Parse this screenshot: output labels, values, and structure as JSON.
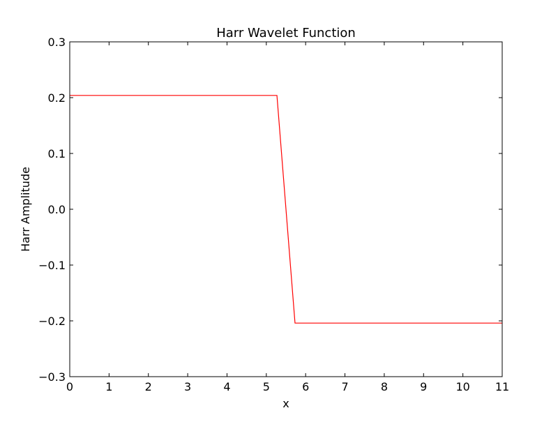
{
  "chart_data": {
    "type": "line",
    "title": "Harr Wavelet Function",
    "xlabel": "x",
    "ylabel": "Harr Amplitude",
    "xlim": [
      0,
      11
    ],
    "ylim": [
      -0.3,
      0.3
    ],
    "grid": false,
    "x_ticks": [
      0,
      1,
      2,
      3,
      4,
      5,
      6,
      7,
      8,
      9,
      10,
      11
    ],
    "x_tick_labels": [
      "0",
      "1",
      "2",
      "3",
      "4",
      "5",
      "6",
      "7",
      "8",
      "9",
      "10",
      "11"
    ],
    "y_ticks": [
      -0.3,
      -0.2,
      -0.1,
      0.0,
      0.1,
      0.2,
      0.3
    ],
    "y_tick_labels": [
      "−0.3",
      "−0.2",
      "−0.1",
      "0.0",
      "0.1",
      "0.2",
      "0.3"
    ],
    "series": [
      {
        "color": "#ff0000",
        "x": [
          0,
          5.27,
          5.73,
          11
        ],
        "y": [
          0.204,
          0.204,
          -0.204,
          -0.204
        ]
      }
    ]
  }
}
